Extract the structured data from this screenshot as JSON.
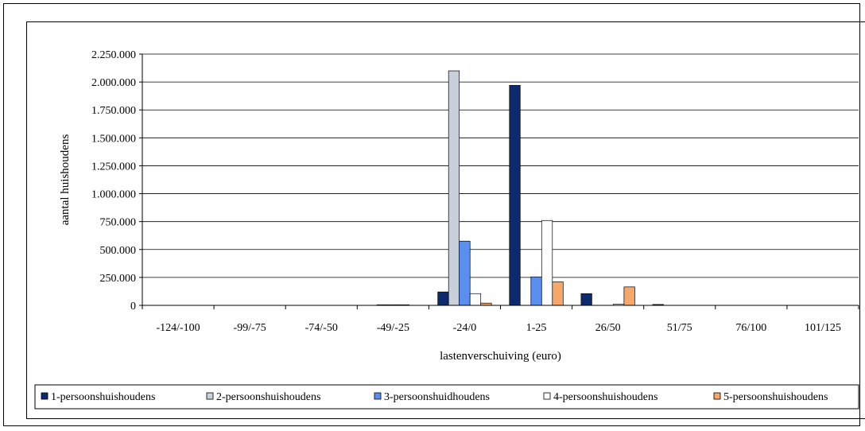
{
  "chart_data": {
    "type": "bar",
    "title": "",
    "xlabel": "lastenverschuiving (euro)",
    "ylabel": "aantal huishoudens",
    "ylim": [
      0,
      2250000
    ],
    "yticks": [
      0,
      250000,
      500000,
      750000,
      1000000,
      1250000,
      1500000,
      1750000,
      2000000,
      2250000
    ],
    "ytick_labels": [
      "0",
      "250.000",
      "500.000",
      "750.000",
      "1.000.000",
      "1.250.000",
      "1.500.000",
      "1.750.000",
      "2.000.000",
      "2.250.000"
    ],
    "categories": [
      "-124/-100",
      "-99/-75",
      "-74/-50",
      "-49/-25",
      "-24/0",
      "1-25",
      "26/50",
      "51/75",
      "76/100",
      "101/125"
    ],
    "legend_position": "bottom",
    "grid": "horizontal",
    "series": [
      {
        "name": "1-persoonshuishoudens",
        "color": "#0c2a6e",
        "values": [
          0,
          0,
          0,
          0,
          120000,
          1970000,
          105000,
          8000,
          0,
          0
        ]
      },
      {
        "name": "2-persoonshuishoudens",
        "color": "#c8d0dc",
        "values": [
          0,
          0,
          0,
          5000,
          2100000,
          0,
          0,
          0,
          0,
          0
        ]
      },
      {
        "name": "3-persoonshuidhoudens",
        "color": "#5a8ef0",
        "values": [
          0,
          0,
          0,
          5000,
          575000,
          255000,
          0,
          0,
          0,
          0
        ]
      },
      {
        "name": "4-persoonshuishoudens",
        "color": "#ffffff",
        "values": [
          0,
          0,
          0,
          5000,
          105000,
          760000,
          10000,
          0,
          0,
          0
        ]
      },
      {
        "name": "5-persoonshuishoudens",
        "color": "#f5a86a",
        "values": [
          0,
          0,
          0,
          0,
          20000,
          210000,
          165000,
          0,
          0,
          0
        ]
      }
    ]
  }
}
